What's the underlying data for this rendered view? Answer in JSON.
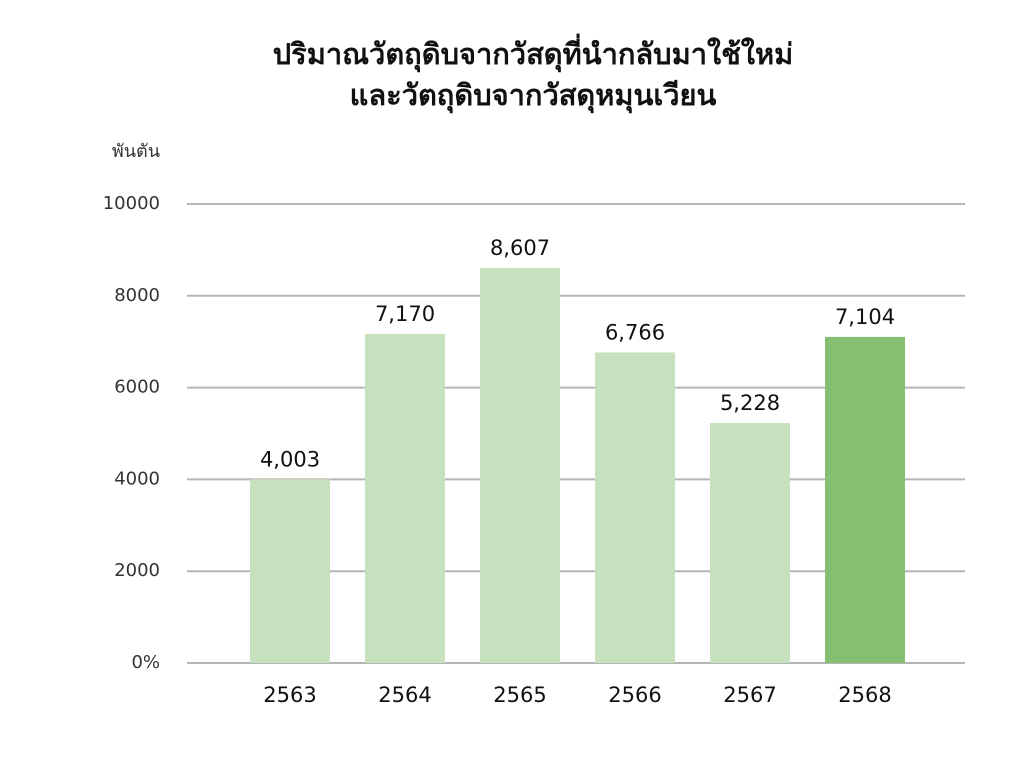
{
  "chart_data": {
    "type": "bar",
    "title_lines": [
      "ปริมาณวัตถุดิบจากวัสดุที่นำกลับมาใช้ใหม่",
      "และวัตถุดิบจากวัสดุหมุนเวียน"
    ],
    "y_axis_label": "พันตัน",
    "categories": [
      "2563",
      "2564",
      "2565",
      "2566",
      "2567",
      "2568"
    ],
    "values": [
      4003,
      7170,
      8607,
      6766,
      5228,
      7104
    ],
    "value_labels": [
      "4,003",
      "7,170",
      "8,607",
      "6,766",
      "5,228",
      "7,104"
    ],
    "colors": [
      "#c7e0bd",
      "#c7e0bd",
      "#c7e0bd",
      "#c7e0bd",
      "#c7e0bd",
      "#85bf71"
    ],
    "ylim": [
      0,
      10000
    ],
    "yticks": [
      {
        "value": 0,
        "label": "0%"
      },
      2000,
      4000,
      6000,
      8000,
      10000
    ],
    "grid": true
  }
}
